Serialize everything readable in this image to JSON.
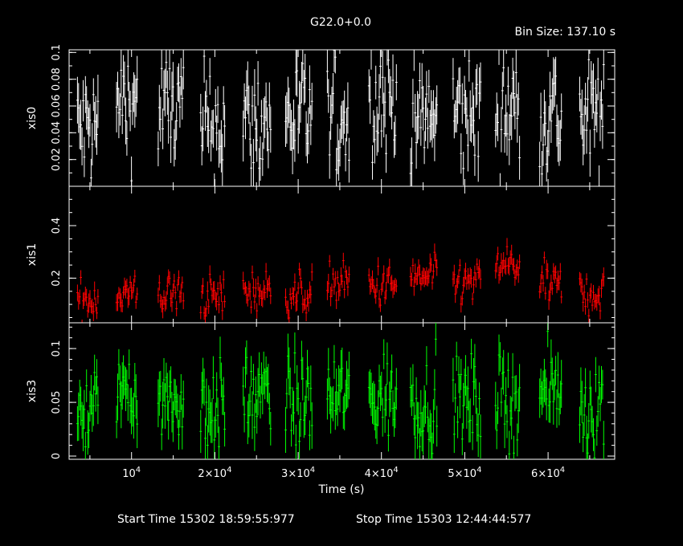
{
  "title": "G22.0+0.0",
  "bin_size": "Bin Size: 137.10 s",
  "xlabel": "Time (s)",
  "start_time": "Start Time 15302 18:59:55:977",
  "stop_time": "Stop Time 15303 12:44:44:577",
  "colors": {
    "background": "#000000",
    "axes": "#ffffff",
    "xis0": "#ffffff",
    "xis1": "#ff0000",
    "xis3": "#00ff00"
  },
  "chart_data": {
    "type": "scatter",
    "subtype": "lightcurve-with-error-bars",
    "xlim": [
      2500,
      68000
    ],
    "x_tick_values": [
      10000,
      20000,
      30000,
      40000,
      50000,
      60000
    ],
    "x_tick_labels": [
      {
        "base": "10",
        "exp": "4"
      },
      {
        "base": "2×10",
        "exp": "4"
      },
      {
        "base": "3×10",
        "exp": "4"
      },
      {
        "base": "4×10",
        "exp": "4"
      },
      {
        "base": "5×10",
        "exp": "4"
      },
      {
        "base": "6×10",
        "exp": "4"
      }
    ],
    "observation_segments": [
      [
        3500,
        6000
      ],
      [
        8200,
        10800
      ],
      [
        13200,
        16300
      ],
      [
        18300,
        21300
      ],
      [
        23400,
        26700
      ],
      [
        28500,
        31700
      ],
      [
        33500,
        36200
      ],
      [
        38500,
        41800
      ],
      [
        43500,
        46700
      ],
      [
        48600,
        51900
      ],
      [
        53700,
        56700
      ],
      [
        59000,
        61700
      ],
      [
        63800,
        66800
      ]
    ],
    "series": [
      {
        "name": "xis0",
        "ylabel": "xis0",
        "ylim": [
          0.0,
          0.102
        ],
        "yticks": [
          0.02,
          0.04,
          0.06,
          0.08,
          0.1
        ],
        "ytick_labels": [
          "0.02",
          "0.04",
          "0.06",
          "0.08",
          "0.1"
        ],
        "rate_mean": [
          0.042,
          0.062,
          0.058,
          0.047,
          0.046,
          0.052,
          0.05,
          0.067,
          0.05,
          0.052,
          0.058,
          0.054,
          0.05
        ],
        "rate_scatter": 0.022,
        "err_mean": 0.016
      },
      {
        "name": "xis1",
        "ylabel": "xis1",
        "ylim": [
          0.03,
          0.55
        ],
        "yticks": [
          0.2,
          0.4
        ],
        "ytick_labels": [
          "0.2",
          "0.4"
        ],
        "rate_mean": [
          0.12,
          0.14,
          0.14,
          0.13,
          0.15,
          0.14,
          0.18,
          0.17,
          0.2,
          0.18,
          0.25,
          0.17,
          0.14
        ],
        "rate_scatter": 0.04,
        "err_mean": 0.03
      },
      {
        "name": "xis3",
        "ylabel": "xis3",
        "ylim": [
          -0.003,
          0.124
        ],
        "yticks": [
          0.0,
          0.05,
          0.1
        ],
        "ytick_labels": [
          "0",
          "0.05",
          "0.1"
        ],
        "rate_mean": [
          0.04,
          0.065,
          0.05,
          0.045,
          0.055,
          0.05,
          0.055,
          0.055,
          0.05,
          0.05,
          0.052,
          0.06,
          0.045
        ],
        "rate_scatter": 0.02,
        "err_mean": 0.018
      }
    ],
    "grid": false,
    "legend": "none"
  }
}
